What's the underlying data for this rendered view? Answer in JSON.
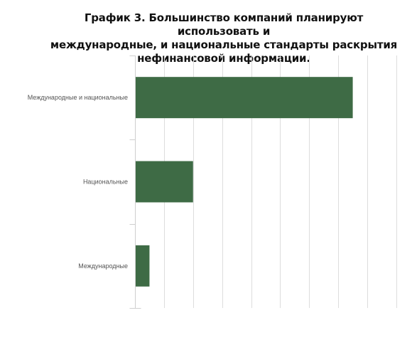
{
  "chart_data": {
    "type": "bar",
    "orientation": "horizontal",
    "title_lines": [
      "График 3. Большинство компаний планируют использовать и",
      "международные, и национальные стандарты раскрытия",
      "нефинансовой информации."
    ],
    "categories": [
      "Международные и национальные",
      "Национальные",
      "Международные"
    ],
    "values": [
      75,
      20,
      5
    ],
    "xlim": [
      0,
      91
    ],
    "grid": true,
    "bar_color": "#3e6b45",
    "grid_color": "#dddddd",
    "label_color": "#555555"
  }
}
